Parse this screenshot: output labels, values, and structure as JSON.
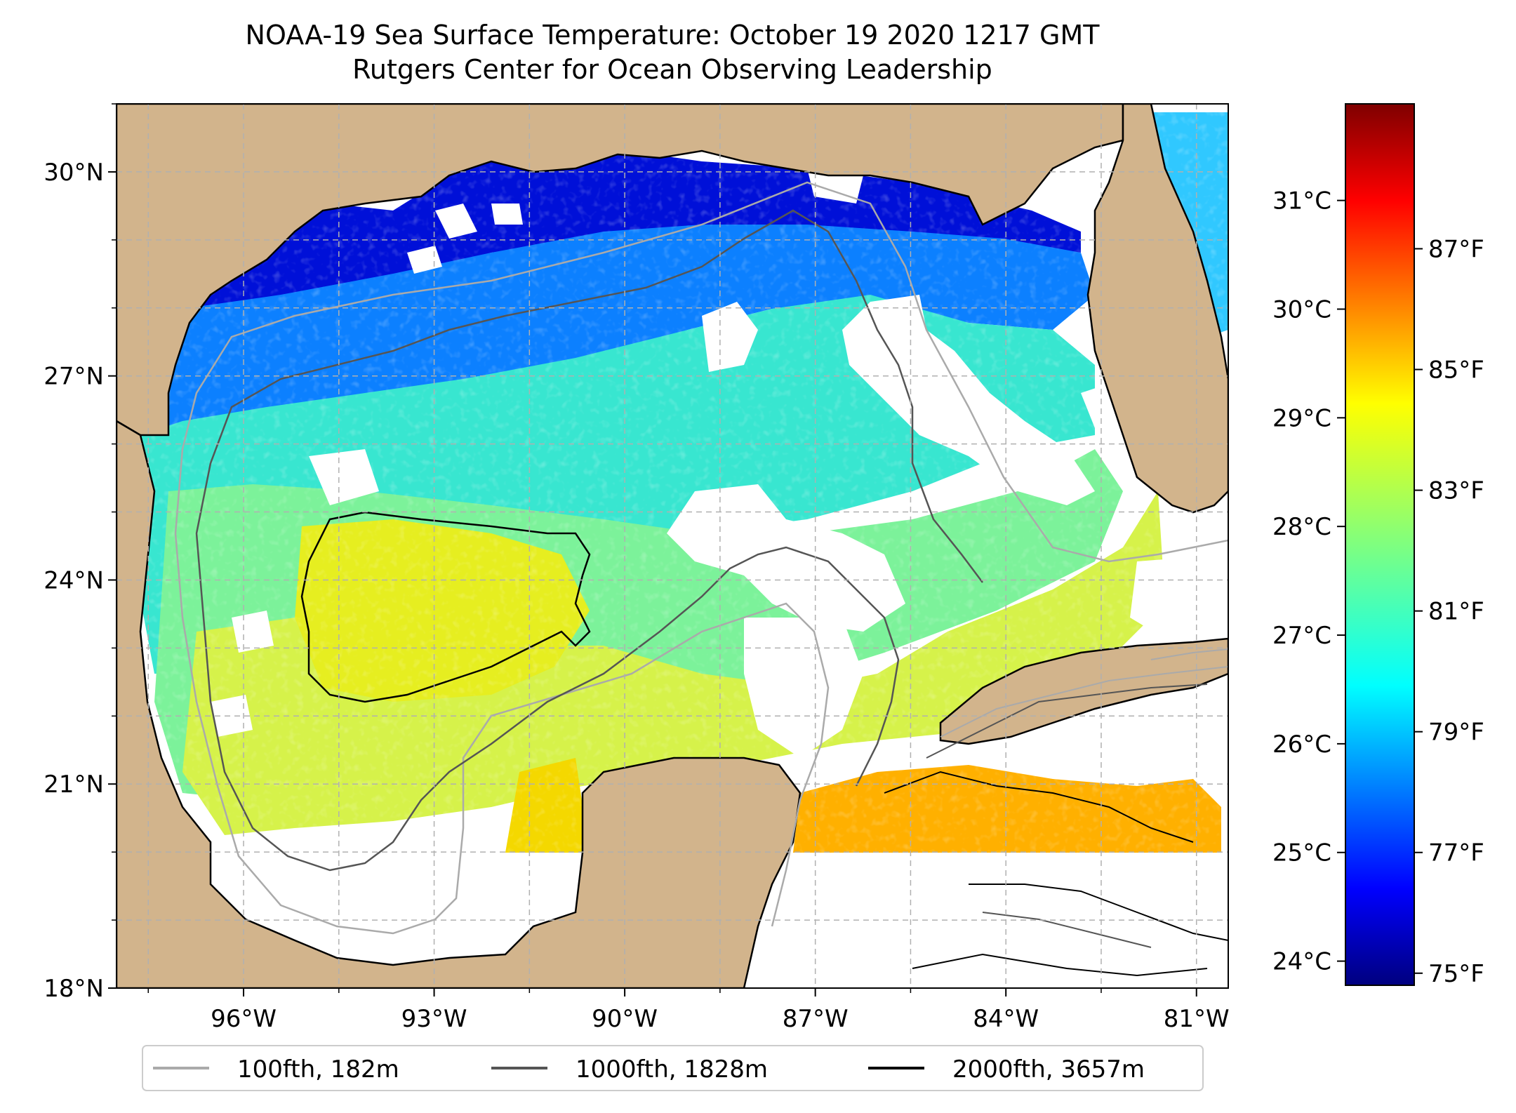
{
  "title": {
    "line1": "NOAA-19 Sea Surface Temperature: October 19 2020 1217 GMT",
    "line2": "Rutgers Center for Ocean Observing Leadership"
  },
  "map": {
    "lon_range": [
      -98.0,
      -80.5
    ],
    "lat_range": [
      18.0,
      31.0
    ],
    "lon_ticks": [
      {
        "value": -96,
        "label": "96°W"
      },
      {
        "value": -93,
        "label": "93°W"
      },
      {
        "value": -90,
        "label": "90°W"
      },
      {
        "value": -87,
        "label": "87°W"
      },
      {
        "value": -84,
        "label": "84°W"
      },
      {
        "value": -81,
        "label": "81°W"
      }
    ],
    "lat_ticks": [
      {
        "value": 18,
        "label": "18°N"
      },
      {
        "value": 21,
        "label": "21°N"
      },
      {
        "value": 24,
        "label": "24°N"
      },
      {
        "value": 27,
        "label": "27°N"
      },
      {
        "value": 30,
        "label": "30°N"
      }
    ],
    "gridlines": true,
    "land_color": "#d2b48c",
    "no_data_color": "#ffffff",
    "grid_color": "#b0b0b0"
  },
  "colorbar": {
    "colormap": "jet",
    "colors": [
      "#00007f",
      "#0000ff",
      "#007fff",
      "#00ffff",
      "#7fff7f",
      "#ffff00",
      "#ff7f00",
      "#ff0000",
      "#7f0000"
    ],
    "celsius_ticks": [
      {
        "value": 24,
        "label": "24°C"
      },
      {
        "value": 25,
        "label": "25°C"
      },
      {
        "value": 26,
        "label": "26°C"
      },
      {
        "value": 27,
        "label": "27°C"
      },
      {
        "value": 28,
        "label": "28°C"
      },
      {
        "value": 29,
        "label": "29°C"
      },
      {
        "value": 30,
        "label": "30°C"
      },
      {
        "value": 31,
        "label": "31°C"
      }
    ],
    "fahrenheit_ticks": [
      {
        "value": 75,
        "label": "75°F"
      },
      {
        "value": 77,
        "label": "77°F"
      },
      {
        "value": 79,
        "label": "79°F"
      },
      {
        "value": 81,
        "label": "81°F"
      },
      {
        "value": 83,
        "label": "83°F"
      },
      {
        "value": 85,
        "label": "85°F"
      },
      {
        "value": 87,
        "label": "87°F"
      }
    ],
    "range_f": [
      74.8,
      89.4
    ]
  },
  "legend": {
    "items": [
      {
        "label": "100fth, 182m",
        "color": "#aaaaaa"
      },
      {
        "label": "1000fth, 1828m",
        "color": "#555555"
      },
      {
        "label": "2000fth, 3657m",
        "color": "#000000"
      }
    ]
  }
}
